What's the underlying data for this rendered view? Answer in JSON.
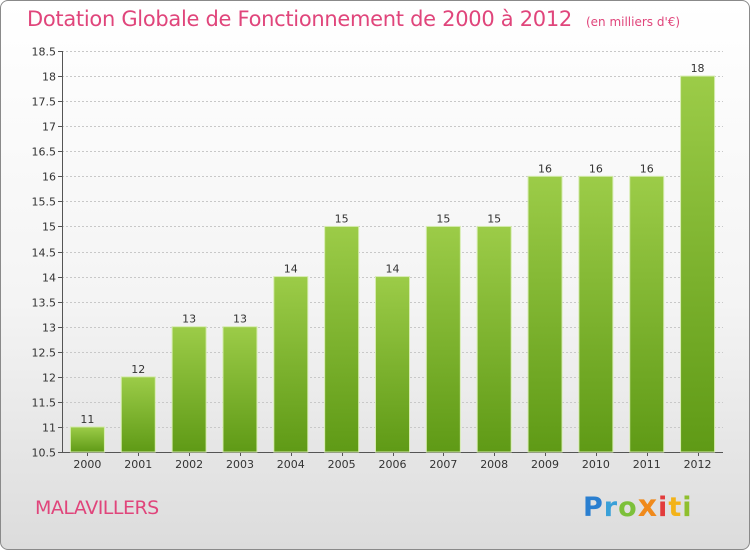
{
  "header": {
    "title": "Dotation Globale de Fonctionnement de 2000 à 2012",
    "unit": "(en milliers d'€)"
  },
  "footer": {
    "commune": "MALAVILLERS",
    "logo": [
      "P",
      "r",
      "o",
      "x",
      "i",
      "t",
      "i"
    ]
  },
  "colors": {
    "accent": "#e0457b",
    "bar_top": "#9ccc48",
    "bar_bottom": "#5f9a16",
    "grid": "#c8c8c8"
  },
  "chart_data": {
    "type": "bar",
    "title": "Dotation Globale de Fonctionnement de 2000 à 2012",
    "subtitle": "(en milliers d'€)",
    "xlabel": "",
    "ylabel": "",
    "categories": [
      "2000",
      "2001",
      "2002",
      "2003",
      "2004",
      "2005",
      "2006",
      "2007",
      "2008",
      "2009",
      "2010",
      "2011",
      "2012"
    ],
    "values": [
      11,
      12,
      13,
      13,
      14,
      15,
      14,
      15,
      15,
      16,
      16,
      16,
      18
    ],
    "data_labels": [
      "11",
      "12",
      "13",
      "13",
      "14",
      "15",
      "14",
      "15",
      "15",
      "16",
      "16",
      "16",
      "18"
    ],
    "ylim": [
      10.5,
      18.5
    ],
    "yticks": [
      10.5,
      11,
      11.5,
      12,
      12.5,
      13,
      13.5,
      14,
      14.5,
      15,
      15.5,
      16,
      16.5,
      17,
      17.5,
      18,
      18.5
    ],
    "ytick_labels": [
      "10.5",
      "11",
      "11.5",
      "12",
      "12.5",
      "13",
      "13.5",
      "14",
      "14.5",
      "15",
      "15.5",
      "16",
      "16.5",
      "17",
      "17.5",
      "18",
      "18.5"
    ],
    "grid": true,
    "legend": "none"
  }
}
